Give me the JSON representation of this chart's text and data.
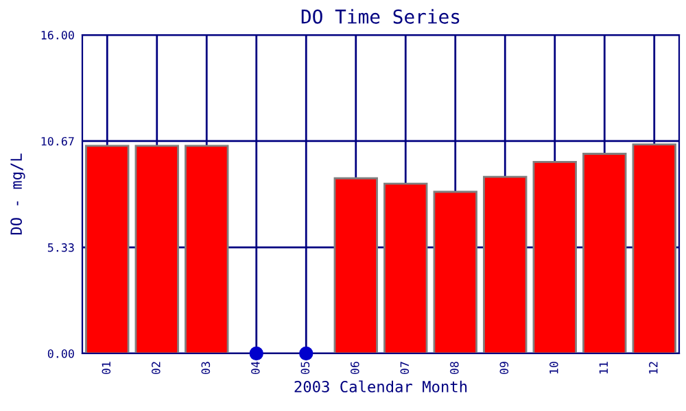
{
  "chart_data": {
    "type": "bar",
    "title": "DO Time Series",
    "xlabel": "2003 Calendar Month",
    "ylabel": "DO - mg/L",
    "categories": [
      "01",
      "02",
      "03",
      "04",
      "05",
      "06",
      "07",
      "08",
      "09",
      "10",
      "11",
      "12"
    ],
    "series": [
      {
        "color": "#ff0000",
        "values": [
          10.43,
          10.43,
          10.43,
          null,
          null,
          8.8,
          8.53,
          8.12,
          8.87,
          9.62,
          10.03,
          10.5
        ]
      },
      {
        "type": "scatter",
        "color": "#0000cc",
        "x": [
          "04",
          "05"
        ],
        "values": [
          0,
          0
        ]
      }
    ],
    "ylim": [
      0,
      16
    ],
    "yticks": [
      {
        "value": 0,
        "label": "0.00"
      },
      {
        "value": 5.33,
        "label": "5.33"
      },
      {
        "value": 10.67,
        "label": "10.67"
      },
      {
        "value": 16,
        "label": "16.00"
      }
    ],
    "grid": true
  }
}
